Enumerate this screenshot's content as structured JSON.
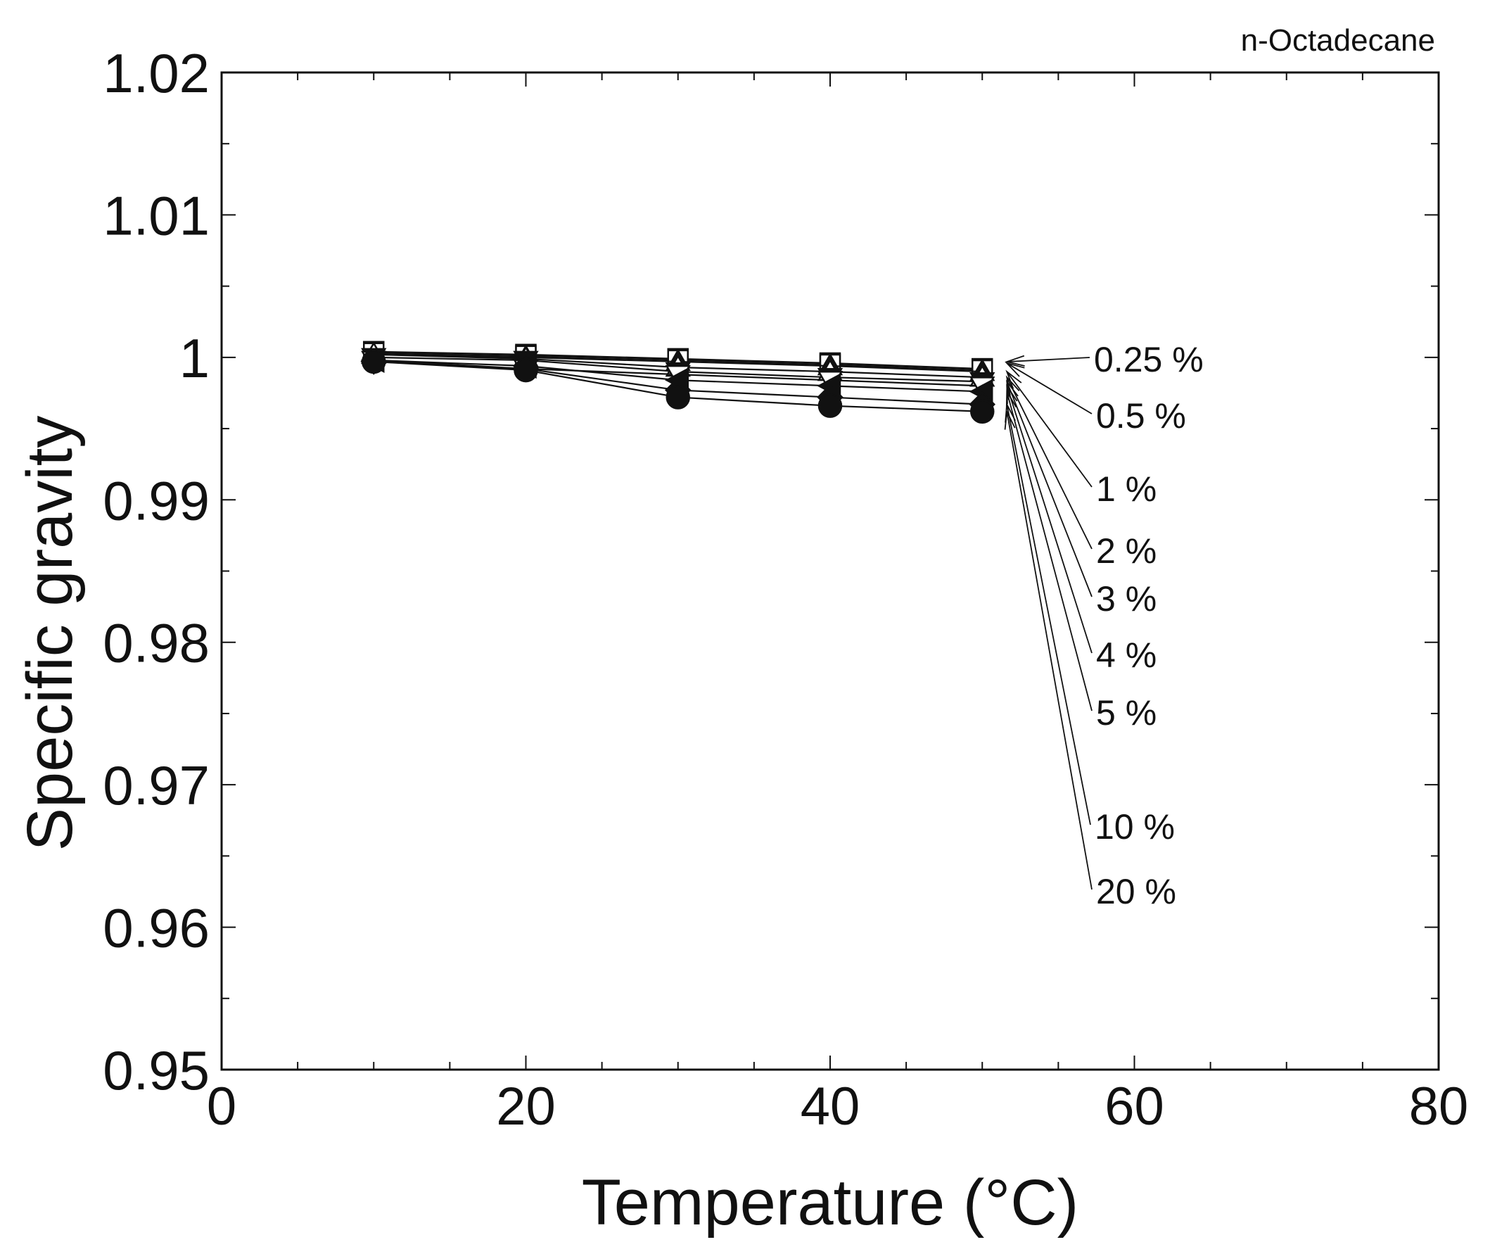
{
  "chart_data": {
    "type": "line",
    "title": "n-Octadecane",
    "xlabel": "Temperature (°C)",
    "ylabel": "Specific gravity",
    "xlim": [
      0,
      80
    ],
    "ylim": [
      0.95,
      1.02
    ],
    "grid": false,
    "x_ticks": [
      0,
      20,
      40,
      60,
      80
    ],
    "x_tick_labels": [
      "0",
      "20",
      "40",
      "60",
      "80"
    ],
    "y_ticks": [
      0.95,
      0.96,
      0.97,
      0.98,
      0.99,
      1.0,
      1.01,
      1.02
    ],
    "y_tick_labels": [
      "0.95",
      "0.96",
      "0.97",
      "0.98",
      "0.99",
      "1",
      "1.01",
      "1.02"
    ],
    "x": [
      10,
      20,
      30,
      40,
      50
    ],
    "series": [
      {
        "name": "0.25 %",
        "marker": "square-filled",
        "values": [
          1.0004,
          1.0002,
          0.9999,
          0.9996,
          0.9992
        ]
      },
      {
        "name": "0.5 %",
        "marker": "square-open",
        "values": [
          1.0003,
          1.0001,
          0.9998,
          0.9995,
          0.9991
        ]
      },
      {
        "name": "1 %",
        "marker": "triangle-up-filled",
        "values": [
          1.0002,
          1.0,
          0.9997,
          0.9994,
          0.999
        ]
      },
      {
        "name": "2 %",
        "marker": "triangle-up-open",
        "values": [
          1.0002,
          0.9999,
          0.9993,
          0.999,
          0.9986
        ]
      },
      {
        "name": "3 %",
        "marker": "triangle-down-filled",
        "values": [
          1.0,
          0.9998,
          0.999,
          0.9986,
          0.9983
        ]
      },
      {
        "name": "4 %",
        "marker": "triangle-down-open",
        "values": [
          0.9998,
          0.9992,
          0.9988,
          0.9984,
          0.998
        ]
      },
      {
        "name": "5 %",
        "marker": "triangle-left-filled",
        "values": [
          0.9998,
          0.9994,
          0.9984,
          0.998,
          0.9976
        ]
      },
      {
        "name": "10 %",
        "marker": "diamond-filled",
        "values": [
          0.9997,
          0.9992,
          0.9977,
          0.9972,
          0.9967
        ]
      },
      {
        "name": "20 %",
        "marker": "circle-filled",
        "values": [
          0.9997,
          0.9991,
          0.9972,
          0.9966,
          0.9962
        ]
      }
    ],
    "legend": "arrow labels at right of series ends"
  }
}
